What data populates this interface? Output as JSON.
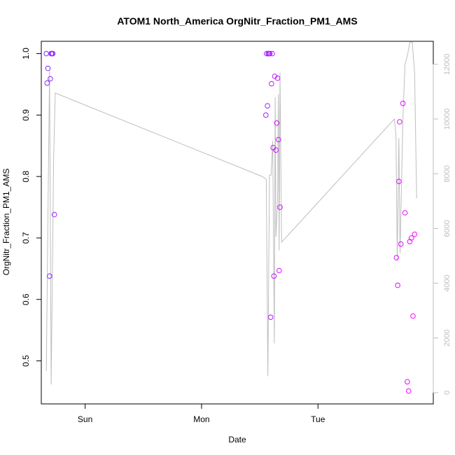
{
  "chart_data": {
    "type": "scatter",
    "title": "ATOM1 North_America OrgNitr_Fraction_PM1_AMS",
    "xlabel": "Date",
    "ylabel": "OrgNitr_Fraction_PM1_AMS",
    "y2label": "",
    "x_axis": {
      "kind": "datetime",
      "range": [
        "Sat 14:58",
        "Tue 23:46"
      ],
      "ticks": [
        {
          "at": "Sun 00:00",
          "label": "Sun"
        },
        {
          "at": "Mon 00:00",
          "label": "Mon"
        },
        {
          "at": "Tue 00:00",
          "label": "Tue"
        }
      ]
    },
    "y_axis": {
      "range": [
        0.43,
        1.02
      ],
      "ticks": [
        0.5,
        0.6,
        0.7,
        0.8,
        0.9,
        1.0
      ],
      "tick_labels": [
        "0.5",
        "0.6",
        "0.7",
        "0.8",
        "0.9",
        "1.0"
      ]
    },
    "y2_axis": {
      "range": [
        -410,
        12840
      ],
      "ticks": [
        0,
        2000,
        4000,
        6000,
        8000,
        10000,
        12000
      ],
      "tick_labels": [
        "0",
        "2000",
        "4000",
        "6000",
        "8000",
        "10000",
        "12000"
      ],
      "color": "#bebebe"
    },
    "grid": false,
    "legend": "none",
    "point_color_gradient": [
      "#7b2cff",
      "#ff00ff"
    ],
    "points": [
      {
        "x": "Sat 16:00",
        "y": 1.0
      },
      {
        "x": "Sat 16:10",
        "y": 0.952
      },
      {
        "x": "Sat 16:20",
        "y": 0.976
      },
      {
        "x": "Sat 16:40",
        "y": 0.638
      },
      {
        "x": "Sat 16:50",
        "y": 0.959
      },
      {
        "x": "Sat 17:00",
        "y": 1.0
      },
      {
        "x": "Sat 17:10",
        "y": 1.0
      },
      {
        "x": "Sat 17:20",
        "y": 1.0
      },
      {
        "x": "Sat 17:40",
        "y": 0.738
      },
      {
        "x": "Mon 13:15",
        "y": 0.9
      },
      {
        "x": "Mon 13:25",
        "y": 1.0
      },
      {
        "x": "Mon 13:35",
        "y": 0.915
      },
      {
        "x": "Mon 13:45",
        "y": 1.0
      },
      {
        "x": "Mon 13:55",
        "y": 1.0
      },
      {
        "x": "Mon 14:05",
        "y": 1.0
      },
      {
        "x": "Mon 14:15",
        "y": 0.571
      },
      {
        "x": "Mon 14:25",
        "y": 0.951
      },
      {
        "x": "Mon 14:35",
        "y": 1.0
      },
      {
        "x": "Mon 14:45",
        "y": 0.847
      },
      {
        "x": "Mon 14:55",
        "y": 0.638
      },
      {
        "x": "Mon 15:05",
        "y": 0.963
      },
      {
        "x": "Mon 15:20",
        "y": 0.843
      },
      {
        "x": "Mon 15:30",
        "y": 0.887
      },
      {
        "x": "Mon 15:40",
        "y": 0.96
      },
      {
        "x": "Mon 15:50",
        "y": 0.86
      },
      {
        "x": "Mon 16:00",
        "y": 0.647
      },
      {
        "x": "Mon 16:10",
        "y": 0.75
      },
      {
        "x": "Tue 16:10",
        "y": 0.668
      },
      {
        "x": "Tue 16:25",
        "y": 0.623
      },
      {
        "x": "Tue 16:40",
        "y": 0.792
      },
      {
        "x": "Tue 16:50",
        "y": 0.889
      },
      {
        "x": "Tue 17:05",
        "y": 0.69
      },
      {
        "x": "Tue 17:30",
        "y": 0.919
      },
      {
        "x": "Tue 17:55",
        "y": 0.741
      },
      {
        "x": "Tue 18:25",
        "y": 0.466
      },
      {
        "x": "Tue 18:40",
        "y": 0.451
      },
      {
        "x": "Tue 18:55",
        "y": 0.694
      },
      {
        "x": "Tue 19:15",
        "y": 0.7
      },
      {
        "x": "Tue 19:35",
        "y": 0.573
      },
      {
        "x": "Tue 19:55",
        "y": 0.706
      }
    ],
    "line_series": {
      "axis": "right",
      "color": "#bebebe",
      "points": [
        {
          "x": "Sat 16:00",
          "y": 800
        },
        {
          "x": "Sat 16:20",
          "y": 6500
        },
        {
          "x": "Sat 16:40",
          "y": 11800
        },
        {
          "x": "Sat 17:00",
          "y": 300
        },
        {
          "x": "Sat 17:30",
          "y": 8500
        },
        {
          "x": "Sat 17:50",
          "y": 10950
        },
        {
          "x": "Mon 12:30",
          "y": 7900
        },
        {
          "x": "Mon 13:20",
          "y": 7800
        },
        {
          "x": "Mon 13:40",
          "y": 600
        },
        {
          "x": "Mon 14:00",
          "y": 7950
        },
        {
          "x": "Mon 14:20",
          "y": 7950
        },
        {
          "x": "Mon 14:40",
          "y": 9200
        },
        {
          "x": "Mon 15:00",
          "y": 1800
        },
        {
          "x": "Mon 15:10",
          "y": 10800
        },
        {
          "x": "Mon 15:20",
          "y": 5700
        },
        {
          "x": "Mon 15:40",
          "y": 7000
        },
        {
          "x": "Mon 15:50",
          "y": 10900
        },
        {
          "x": "Mon 16:00",
          "y": 5200
        },
        {
          "x": "Mon 16:10",
          "y": 11700
        },
        {
          "x": "Mon 16:30",
          "y": 5500
        },
        {
          "x": "Tue 15:45",
          "y": 10000
        },
        {
          "x": "Tue 16:05",
          "y": 9400
        },
        {
          "x": "Tue 16:20",
          "y": 4800
        },
        {
          "x": "Tue 16:40",
          "y": 9300
        },
        {
          "x": "Tue 16:55",
          "y": 5100
        },
        {
          "x": "Tue 17:30",
          "y": 10000
        },
        {
          "x": "Tue 17:55",
          "y": 12000
        },
        {
          "x": "Tue 18:25",
          "y": 12300
        },
        {
          "x": "Tue 18:55",
          "y": 12800
        },
        {
          "x": "Tue 19:25",
          "y": 12800
        },
        {
          "x": "Tue 19:55",
          "y": 11700
        },
        {
          "x": "Tue 20:20",
          "y": 7100
        }
      ]
    }
  }
}
